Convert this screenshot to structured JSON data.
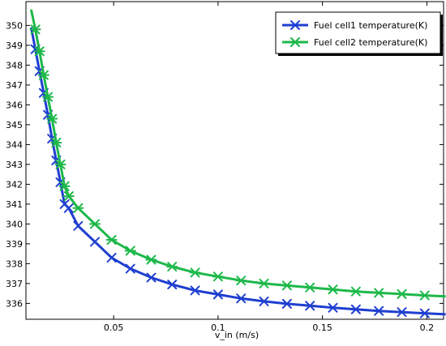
{
  "chart_data": {
    "type": "line",
    "title": "",
    "xlabel": "v_in (m/s)",
    "ylabel": "",
    "xlim": [
      0.008,
      0.208
    ],
    "ylim": [
      335.2,
      351.2
    ],
    "x_ticks": [
      0.05,
      0.1,
      0.15,
      0.2
    ],
    "x_tick_labels": [
      "0.05",
      "0.1",
      "0.15",
      "0.2"
    ],
    "y_ticks": [
      336,
      337,
      338,
      339,
      340,
      341,
      342,
      343,
      344,
      345,
      346,
      347,
      348,
      349,
      350
    ],
    "grid": false,
    "legend_position": "top-right",
    "series": [
      {
        "name": "Fuel cell1 temperature(K)",
        "color": "#1f3fd0",
        "marker": "x",
        "x": [
          0.0105,
          0.0125,
          0.0145,
          0.0165,
          0.0185,
          0.0205,
          0.0225,
          0.0245,
          0.0265,
          0.0285,
          0.033,
          0.041,
          0.049,
          0.058,
          0.068,
          0.078,
          0.089,
          0.1,
          0.111,
          0.122,
          0.133,
          0.144,
          0.155,
          0.166,
          0.177,
          0.188,
          0.199,
          0.209
        ],
        "y": [
          349.9,
          348.8,
          347.7,
          346.6,
          345.5,
          344.3,
          343.2,
          342.1,
          341.0,
          340.8,
          339.9,
          339.1,
          338.3,
          337.75,
          337.3,
          336.95,
          336.65,
          336.45,
          336.25,
          336.1,
          335.98,
          335.88,
          335.78,
          335.7,
          335.62,
          335.56,
          335.5,
          335.45
        ],
        "marker_x": [
          0.0125,
          0.0145,
          0.0165,
          0.0185,
          0.0205,
          0.0225,
          0.0245,
          0.0265,
          0.0285,
          0.033,
          0.041,
          0.049,
          0.058,
          0.068,
          0.078,
          0.089,
          0.1,
          0.111,
          0.122,
          0.133,
          0.144,
          0.155,
          0.166,
          0.177,
          0.188,
          0.199
        ],
        "marker_y": [
          348.8,
          347.7,
          346.6,
          345.5,
          344.3,
          343.2,
          342.1,
          341.0,
          340.8,
          339.9,
          339.1,
          338.3,
          337.75,
          337.3,
          336.95,
          336.65,
          336.45,
          336.25,
          336.1,
          335.98,
          335.88,
          335.78,
          335.7,
          335.62,
          335.56,
          335.5
        ]
      },
      {
        "name": "Fuel cell2 temperature(K)",
        "color": "#1db84a",
        "marker": "asterisk",
        "x": [
          0.0105,
          0.0125,
          0.0145,
          0.0165,
          0.0185,
          0.0205,
          0.0225,
          0.0245,
          0.0265,
          0.0285,
          0.033,
          0.041,
          0.049,
          0.058,
          0.068,
          0.078,
          0.089,
          0.1,
          0.111,
          0.122,
          0.133,
          0.144,
          0.155,
          0.166,
          0.177,
          0.188,
          0.199,
          0.209
        ],
        "y": [
          350.8,
          349.8,
          348.7,
          347.5,
          346.4,
          345.3,
          344.1,
          343.0,
          341.9,
          341.4,
          340.8,
          340.0,
          339.2,
          338.65,
          338.2,
          337.85,
          337.55,
          337.35,
          337.15,
          337.0,
          336.9,
          336.8,
          336.7,
          336.6,
          336.53,
          336.47,
          336.4,
          336.35
        ],
        "marker_x": [
          0.0125,
          0.0145,
          0.0165,
          0.0185,
          0.0205,
          0.0225,
          0.0245,
          0.0265,
          0.0285,
          0.033,
          0.041,
          0.049,
          0.058,
          0.068,
          0.078,
          0.089,
          0.1,
          0.111,
          0.122,
          0.133,
          0.144,
          0.155,
          0.166,
          0.177,
          0.188,
          0.199
        ],
        "marker_y": [
          349.8,
          348.7,
          347.5,
          346.4,
          345.3,
          344.1,
          343.0,
          341.9,
          341.4,
          340.8,
          340.0,
          339.2,
          338.65,
          338.2,
          337.85,
          337.55,
          337.35,
          337.15,
          337.0,
          336.9,
          336.8,
          336.7,
          336.6,
          336.53,
          336.47,
          336.4
        ]
      }
    ]
  }
}
